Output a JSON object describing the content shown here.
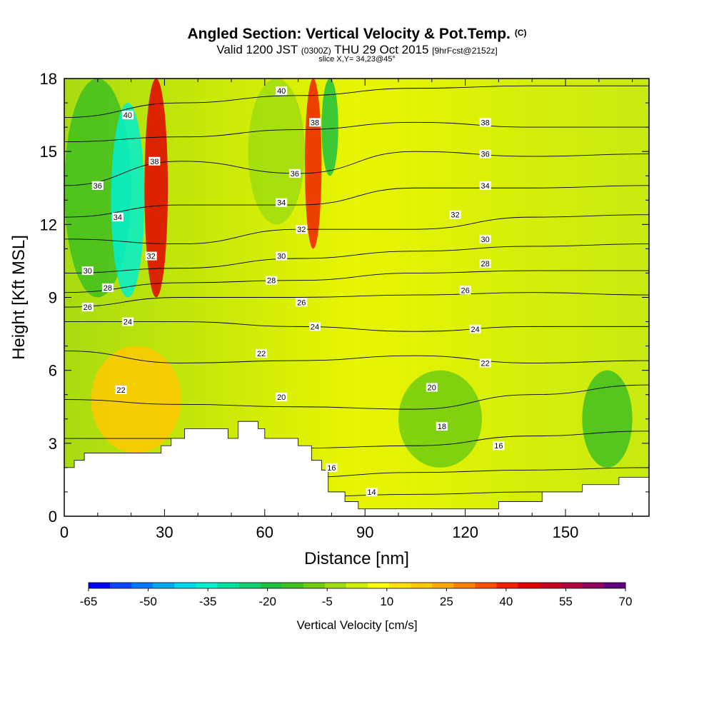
{
  "header": {
    "title": "Angled Section: Vertical Velocity & Pot.Temp.",
    "title_unit": "(C)",
    "subtitle_main": "Valid 1200 JST",
    "subtitle_utc": "(0300Z)",
    "subtitle_date": "THU 29 Oct 2015",
    "subtitle_fcst": "[9hrFcst@2152z]",
    "slice": "slice X,Y= 34,23@45°"
  },
  "colorbar": {
    "title": "Vertical Velocity [cm/s]",
    "tick_labels": [
      "-65",
      "-50",
      "-35",
      "-20",
      "-5",
      "10",
      "25",
      "40",
      "55",
      "70"
    ],
    "colors": [
      "#0000ff",
      "#0a46ff",
      "#0078ff",
      "#00a8f0",
      "#00d8f0",
      "#00f0d0",
      "#00e0a0",
      "#10d070",
      "#20c040",
      "#40c020",
      "#70cc10",
      "#a0dc10",
      "#d0f000",
      "#ffff00",
      "#ffe000",
      "#ffc800",
      "#ffa800",
      "#ff8000",
      "#ff5000",
      "#f02000",
      "#e00000",
      "#c80020",
      "#b00040",
      "#900060",
      "#600080"
    ]
  },
  "chart_data": {
    "type": "heatmap",
    "title": "Angled Section: Vertical Velocity & Pot.Temp.",
    "xlabel": "Distance [nm]",
    "ylabel": "Height [Kft MSL]",
    "xlim": [
      0,
      175
    ],
    "ylim": [
      0,
      18
    ],
    "xticks": [
      0,
      30,
      60,
      90,
      120,
      150
    ],
    "yticks": [
      0,
      3,
      6,
      9,
      12,
      15,
      18
    ],
    "fill_variable": "Vertical Velocity [cm/s]",
    "contour_variable": "Pot.Temp. (C)",
    "terrain_profile": [
      [
        0,
        2
      ],
      [
        3,
        2
      ],
      [
        3,
        2.3
      ],
      [
        6,
        2.3
      ],
      [
        6,
        2.6
      ],
      [
        29,
        2.6
      ],
      [
        29,
        2.9
      ],
      [
        32,
        2.9
      ],
      [
        32,
        3.2
      ],
      [
        36,
        3.2
      ],
      [
        36,
        3.6
      ],
      [
        49,
        3.6
      ],
      [
        49,
        3.2
      ],
      [
        52,
        3.2
      ],
      [
        52,
        3.9
      ],
      [
        58,
        3.9
      ],
      [
        58,
        3.6
      ],
      [
        60,
        3.6
      ],
      [
        60,
        3.2
      ],
      [
        70,
        3.2
      ],
      [
        70,
        2.9
      ],
      [
        74,
        2.9
      ],
      [
        74,
        2.3
      ],
      [
        77,
        2.3
      ],
      [
        77,
        1.9
      ],
      [
        79,
        1.9
      ],
      [
        79,
        1.0
      ],
      [
        84,
        1.0
      ],
      [
        84,
        0.6
      ],
      [
        88,
        0.6
      ],
      [
        88,
        0.3
      ],
      [
        94,
        0.3
      ],
      [
        94,
        0.3
      ],
      [
        130,
        0.3
      ],
      [
        130,
        0.6
      ],
      [
        143,
        0.6
      ],
      [
        143,
        1.0
      ],
      [
        155,
        1.0
      ],
      [
        155,
        1.3
      ],
      [
        166,
        1.3
      ],
      [
        166,
        1.6
      ],
      [
        175,
        1.6
      ]
    ],
    "contours": [
      {
        "level": 14,
        "y": [
          0.3,
          0.6,
          0.8,
          0.9,
          1.0,
          1.0
        ]
      },
      {
        "level": 16,
        "y": [
          1.2,
          1.4,
          1.6,
          1.8,
          1.9,
          2.0
        ]
      },
      {
        "level": 18,
        "y": [
          3.2,
          3.2,
          2.8,
          2.9,
          3.3,
          3.5
        ]
      },
      {
        "level": 20,
        "y": [
          4.8,
          4.6,
          4.5,
          4.4,
          5.0,
          5.4
        ]
      },
      {
        "level": 22,
        "y": [
          6.8,
          6.3,
          6.4,
          6.6,
          6.3,
          6.4
        ]
      },
      {
        "level": 24,
        "y": [
          8.0,
          8.0,
          7.8,
          7.6,
          7.8,
          7.8
        ]
      },
      {
        "level": 26,
        "y": [
          8.6,
          9.0,
          9.0,
          9.1,
          9.2,
          9.1
        ]
      },
      {
        "level": 28,
        "y": [
          9.2,
          9.6,
          9.7,
          10.0,
          10.1,
          10.1
        ]
      },
      {
        "level": 30,
        "y": [
          10.0,
          10.2,
          10.6,
          10.9,
          11.1,
          11.2
        ]
      },
      {
        "level": 32,
        "y": [
          11.4,
          11.2,
          11.8,
          11.8,
          12.3,
          12.4
        ]
      },
      {
        "level": 34,
        "y": [
          12.3,
          12.8,
          12.8,
          13.5,
          13.5,
          13.6
        ]
      },
      {
        "level": 36,
        "y": [
          13.6,
          14.6,
          14.1,
          15.0,
          14.8,
          14.9
        ]
      },
      {
        "level": 38,
        "y": [
          15.4,
          15.6,
          15.9,
          16.2,
          16.0,
          16.0
        ]
      },
      {
        "level": 40,
        "y": [
          16.4,
          17.0,
          17.3,
          17.6,
          17.7,
          17.7
        ]
      }
    ],
    "contour_x": [
      0,
      35,
      70,
      105,
      140,
      175
    ],
    "contour_labels": [
      {
        "text": "40",
        "x": 19,
        "y": 16.5
      },
      {
        "text": "38",
        "x": 27,
        "y": 14.6
      },
      {
        "text": "36",
        "x": 10,
        "y": 13.6
      },
      {
        "text": "34",
        "x": 16,
        "y": 12.3
      },
      {
        "text": "32",
        "x": 26,
        "y": 10.7
      },
      {
        "text": "30",
        "x": 7,
        "y": 10.1
      },
      {
        "text": "28",
        "x": 13,
        "y": 9.4
      },
      {
        "text": "26",
        "x": 7,
        "y": 8.6
      },
      {
        "text": "24",
        "x": 19,
        "y": 8.0
      },
      {
        "text": "22",
        "x": 17,
        "y": 5.2
      },
      {
        "text": "40",
        "x": 65,
        "y": 17.5
      },
      {
        "text": "38",
        "x": 75,
        "y": 16.2
      },
      {
        "text": "36",
        "x": 69,
        "y": 14.1
      },
      {
        "text": "34",
        "x": 65,
        "y": 12.9
      },
      {
        "text": "32",
        "x": 71,
        "y": 11.8
      },
      {
        "text": "30",
        "x": 65,
        "y": 10.7
      },
      {
        "text": "28",
        "x": 62,
        "y": 9.7
      },
      {
        "text": "26",
        "x": 71,
        "y": 8.8
      },
      {
        "text": "24",
        "x": 75,
        "y": 7.8
      },
      {
        "text": "22",
        "x": 59,
        "y": 6.7
      },
      {
        "text": "20",
        "x": 65,
        "y": 4.9
      },
      {
        "text": "16",
        "x": 80,
        "y": 2.0
      },
      {
        "text": "14",
        "x": 92,
        "y": 1.0
      },
      {
        "text": "38",
        "x": 126,
        "y": 16.2
      },
      {
        "text": "36",
        "x": 126,
        "y": 14.9
      },
      {
        "text": "34",
        "x": 126,
        "y": 13.6
      },
      {
        "text": "32",
        "x": 117,
        "y": 12.4
      },
      {
        "text": "30",
        "x": 126,
        "y": 11.4
      },
      {
        "text": "28",
        "x": 126,
        "y": 10.4
      },
      {
        "text": "26",
        "x": 120,
        "y": 9.3
      },
      {
        "text": "24",
        "x": 123,
        "y": 7.7
      },
      {
        "text": "22",
        "x": 126,
        "y": 6.3
      },
      {
        "text": "20",
        "x": 110,
        "y": 5.3
      },
      {
        "text": "18",
        "x": 113,
        "y": 3.7
      },
      {
        "text": "16",
        "x": 130,
        "y": 2.9
      }
    ],
    "vertical_velocity_bands": [
      {
        "x0": 0,
        "x1": 20,
        "y0": 9,
        "y1": 18,
        "value": -15
      },
      {
        "x0": 14,
        "x1": 24,
        "y0": 9,
        "y1": 17,
        "value": -35
      },
      {
        "x0": 24,
        "x1": 31,
        "y0": 9,
        "y1": 18,
        "value": 45
      },
      {
        "x0": 55,
        "x1": 72,
        "y0": 12,
        "y1": 18,
        "value": -5
      },
      {
        "x0": 72,
        "x1": 77,
        "y0": 11,
        "y1": 18,
        "value": 40
      },
      {
        "x0": 77,
        "x1": 82,
        "y0": 14,
        "y1": 18,
        "value": -20
      },
      {
        "x0": 8,
        "x1": 35,
        "y0": 2.6,
        "y1": 7,
        "value": 20
      },
      {
        "x0": 100,
        "x1": 125,
        "y0": 2,
        "y1": 6,
        "value": -8
      },
      {
        "x0": 155,
        "x1": 170,
        "y0": 2,
        "y1": 6,
        "value": -15
      }
    ]
  }
}
